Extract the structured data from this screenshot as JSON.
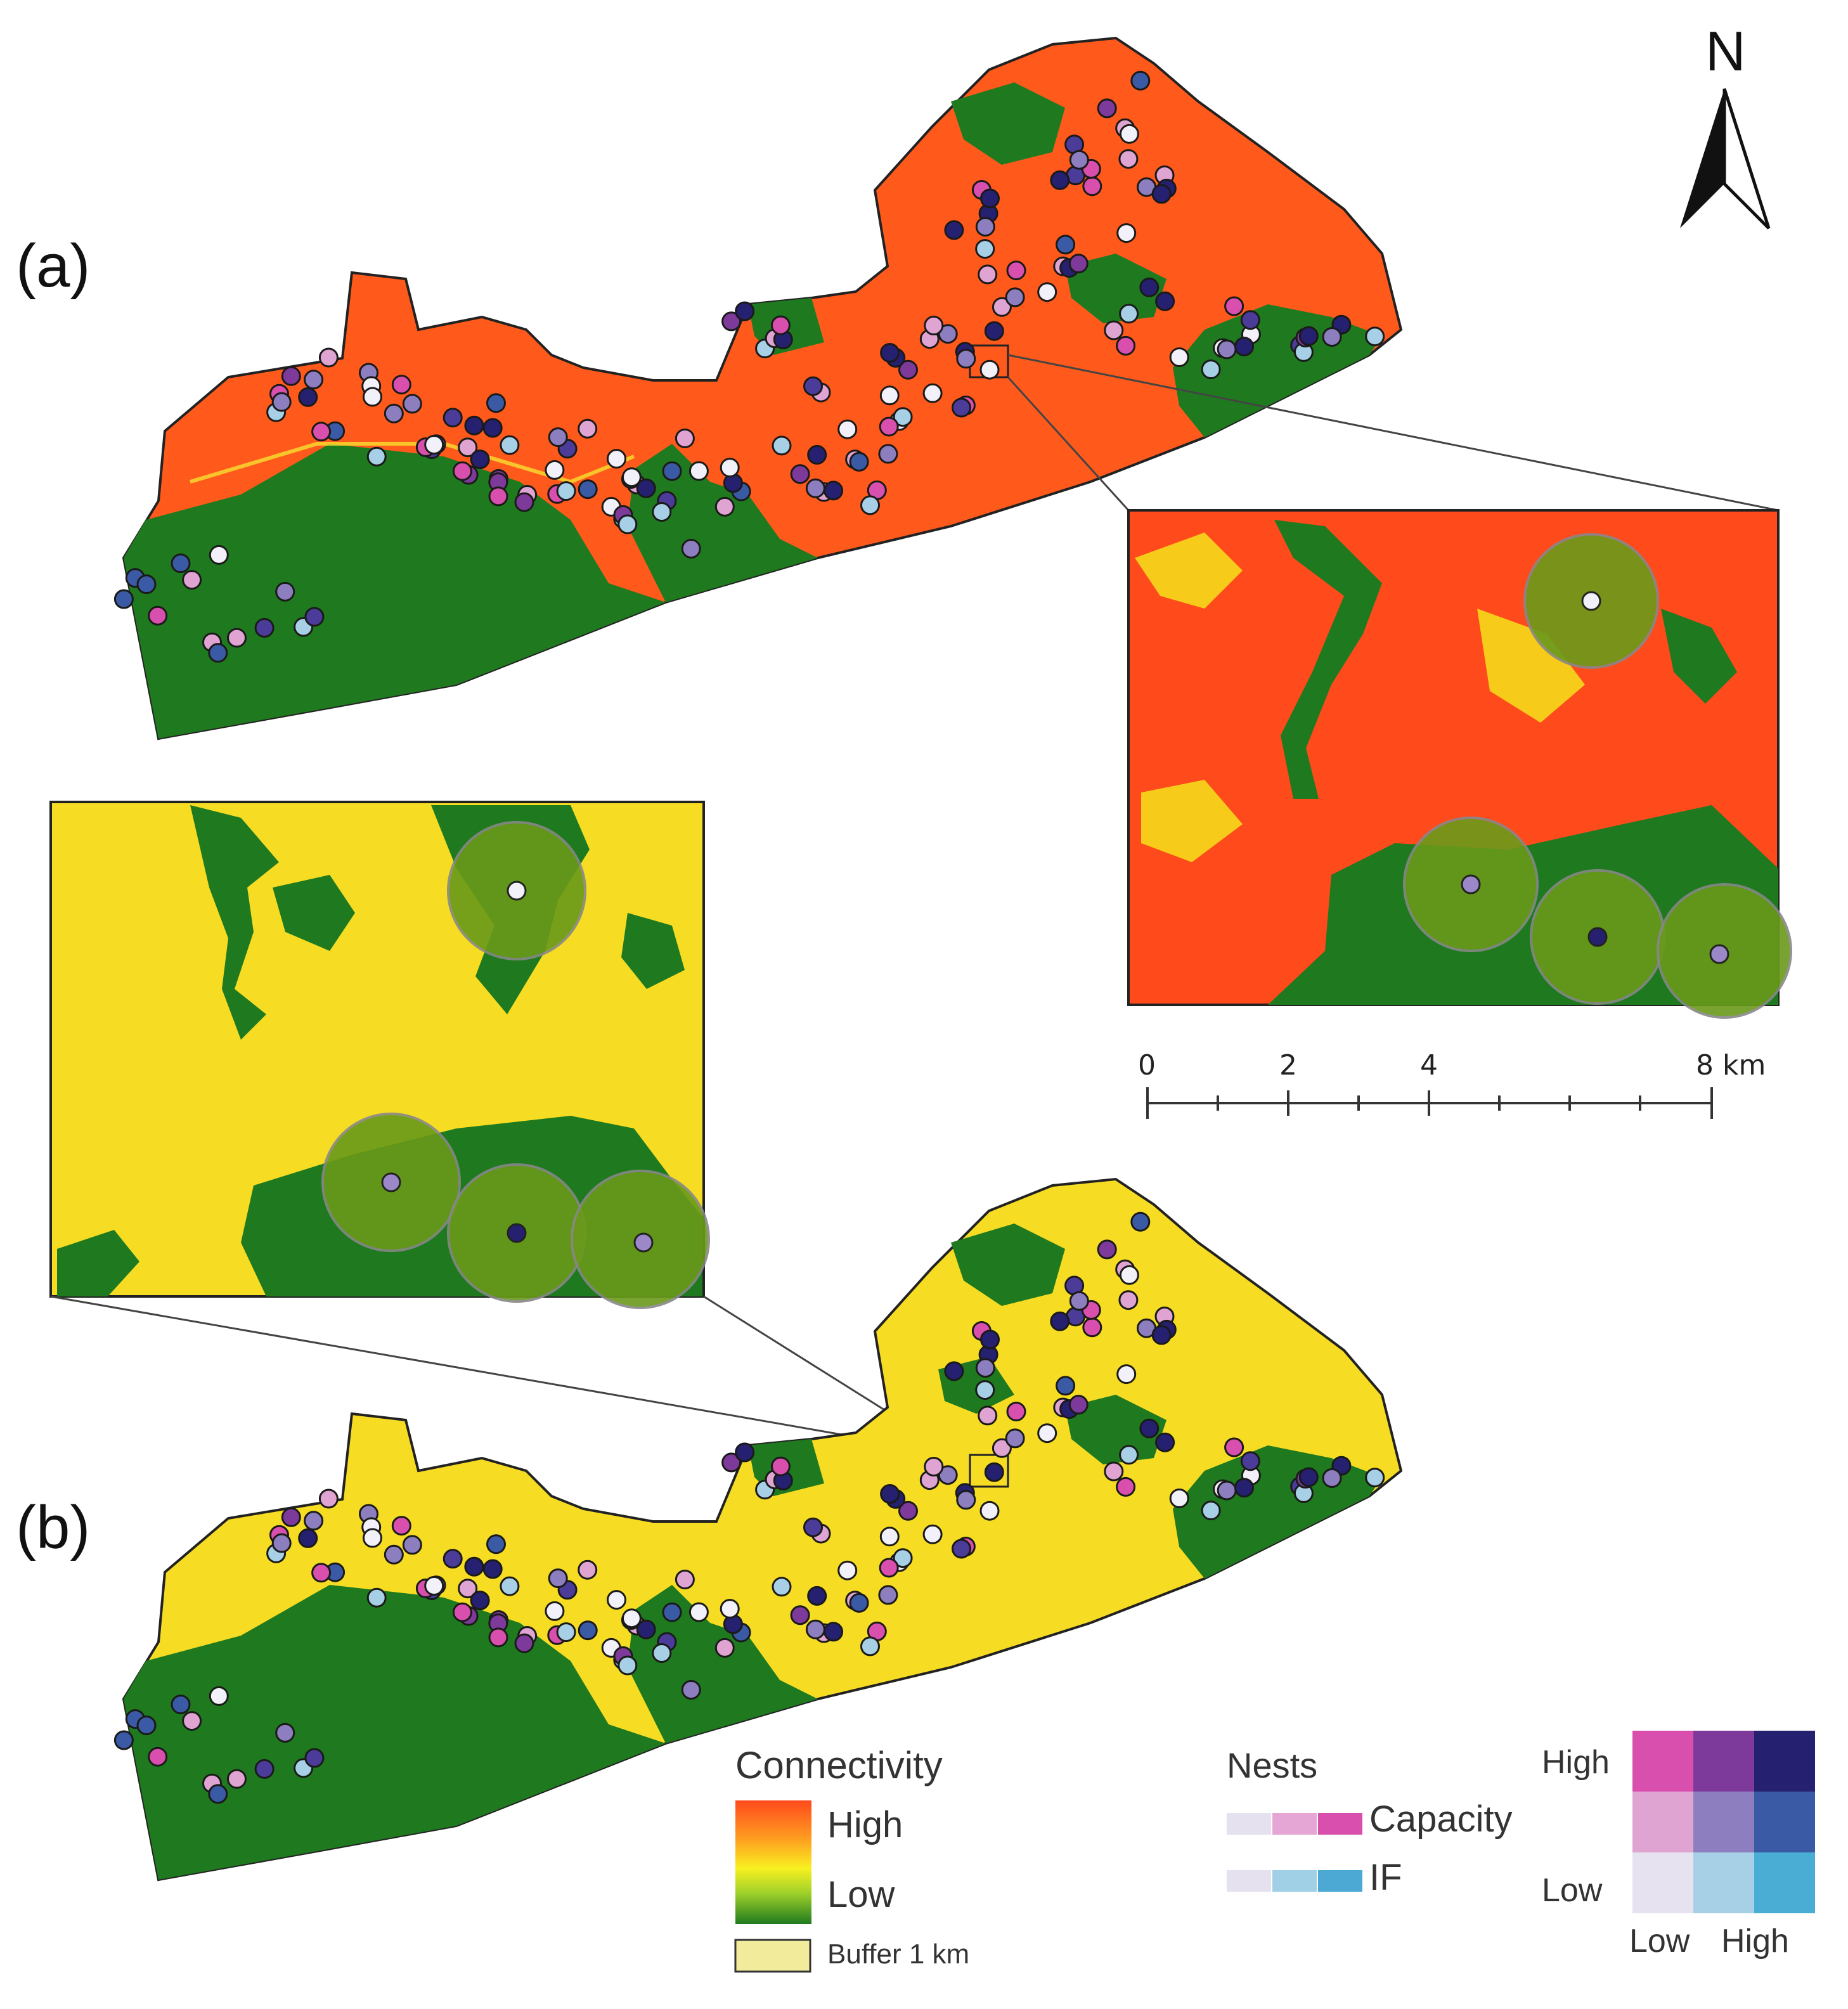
{
  "panels": {
    "a": {
      "label": "(a)"
    },
    "b": {
      "label": "(b)"
    }
  },
  "north_arrow": {
    "label": "N"
  },
  "scale_bar": {
    "ticks": [
      "0",
      "2",
      "4",
      "8 km"
    ]
  },
  "legend": {
    "connectivity": {
      "title": "Connectivity",
      "high": "High",
      "low": "Low",
      "buffer": "Buffer 1 km",
      "colors": {
        "high": "#ff4a1c",
        "mid": "#f5e21a",
        "low": "#1f7a1f",
        "buffer": "#f3eb9c"
      }
    },
    "nests": {
      "title": "Nests",
      "capacity": "Capacity",
      "if": "IF",
      "capacity_colors": [
        "#e6e1ef",
        "#e6a6d5",
        "#d94fae"
      ],
      "if_colors": [
        "#e6e1ef",
        "#9fd0e6",
        "#4ba9d4"
      ]
    },
    "bivariate": {
      "y_high": "High",
      "y_low": "Low",
      "x_low": "Low",
      "x_high": "High",
      "grid": [
        [
          "#d94fae",
          "#7e3a9a",
          "#25206f"
        ],
        [
          "#e0a4d2",
          "#8d7fbf",
          "#3a5aa5"
        ],
        [
          "#e6e2ef",
          "#a7d0e6",
          "#4aaed4"
        ]
      ]
    }
  },
  "map_colors": {
    "forest": "#1f7a1f",
    "high_connectivity": "#ff5a1c",
    "low_connectivity_yellow": "#f7dc24",
    "buffer_green": "#5e9a1a"
  }
}
